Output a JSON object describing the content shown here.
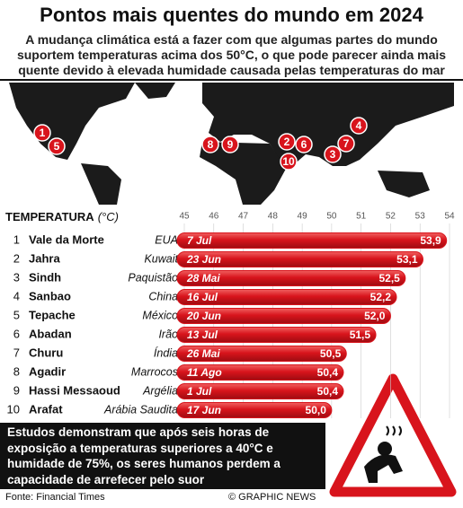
{
  "chart_data": {
    "type": "bar",
    "orientation": "horizontal",
    "title": "Pontos mais quentes do mundo em 2024",
    "subtitle": "A mudança climática está a fazer com que algumas partes do mundo suportem temperaturas acima dos 50°C, o que pode parecer ainda mais quente devido à elevada humidade causada pelas temperaturas do mar",
    "axis_label": "TEMPERATURA",
    "axis_unit": "(°C)",
    "ranks": [
      1,
      2,
      3,
      4,
      5,
      6,
      7,
      8,
      9,
      10
    ],
    "categories": [
      "Vale da Morte",
      "Jahra",
      "Sindh",
      "Sanbao",
      "Tepache",
      "Abadan",
      "Churu",
      "Agadir",
      "Hassi Messaoud",
      "Arafat"
    ],
    "countries": [
      "EUA",
      "Kuwait",
      "Paquistão",
      "China",
      "México",
      "Irão",
      "Índia",
      "Marrocos",
      "Argélia",
      "Arábia Saudita"
    ],
    "dates": [
      "7 Jul",
      "23 Jun",
      "28 Mai",
      "16 Jul",
      "20 Jun",
      "13 Jul",
      "26 Mai",
      "11 Ago",
      "1 Jul",
      "17 Jun"
    ],
    "values": [
      53.9,
      53.1,
      52.5,
      52.2,
      52.0,
      51.5,
      50.5,
      50.4,
      50.4,
      50.0
    ],
    "value_labels": [
      "53,9",
      "53,1",
      "52,5",
      "52,2",
      "52,0",
      "51,5",
      "50,5",
      "50,4",
      "50,4",
      "50,0"
    ],
    "color": "#d8141c",
    "xlim": [
      45,
      54
    ],
    "xticks": [
      45,
      46,
      47,
      48,
      49,
      50,
      51,
      52,
      53,
      54
    ],
    "map_markers": [
      1,
      5,
      8,
      9,
      2,
      6,
      10,
      3,
      7,
      4
    ],
    "note": "Estudos demonstram que após seis horas de exposição a temperaturas superiores a 40°C e humidade de 75%, os seres humanos perdem a capacidade de arrefecer pelo suor",
    "source": "Fonte: Financial Times",
    "credit": "© GRAPHIC NEWS"
  }
}
